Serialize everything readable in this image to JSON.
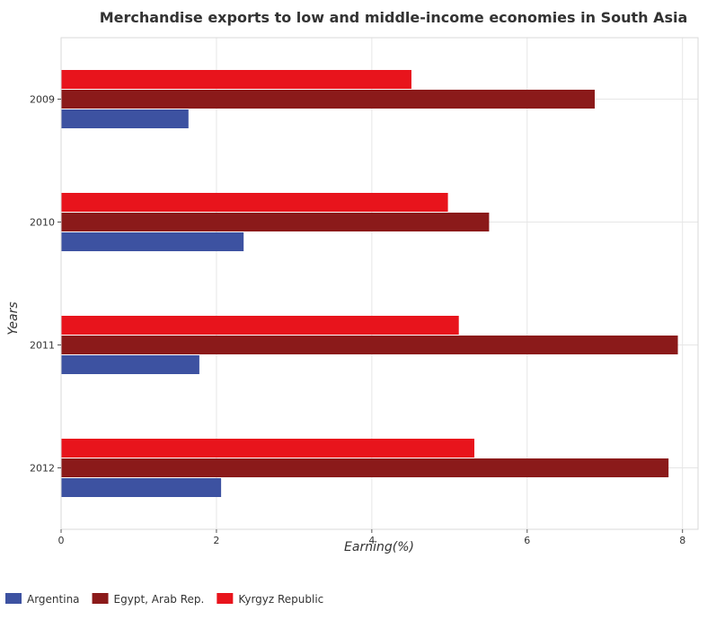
{
  "chart_data": {
    "type": "bar",
    "orientation": "horizontal",
    "title": "Merchandise exports to low and middle-income economies in South Asia",
    "xlabel": "Earning(%)",
    "ylabel": "Years",
    "categories": [
      "2009",
      "2010",
      "2011",
      "2012"
    ],
    "xlim": [
      0,
      8.2
    ],
    "xticks": [
      0,
      2,
      4,
      6,
      8
    ],
    "xtick_labels": [
      "0",
      "2",
      "4",
      "6",
      "8"
    ],
    "grid": true,
    "legend_position": "bottom-left",
    "series": [
      {
        "name": "Argentina",
        "color": "#3d52a1",
        "values": [
          1.64,
          2.35,
          1.78,
          2.06
        ]
      },
      {
        "name": "Egypt, Arab Rep.",
        "color": "#8b1a1a",
        "values": [
          6.87,
          5.51,
          7.94,
          7.82
        ]
      },
      {
        "name": "Kyrgyz Republic",
        "color": "#e8141c",
        "values": [
          4.51,
          4.98,
          5.12,
          5.32
        ]
      }
    ]
  }
}
